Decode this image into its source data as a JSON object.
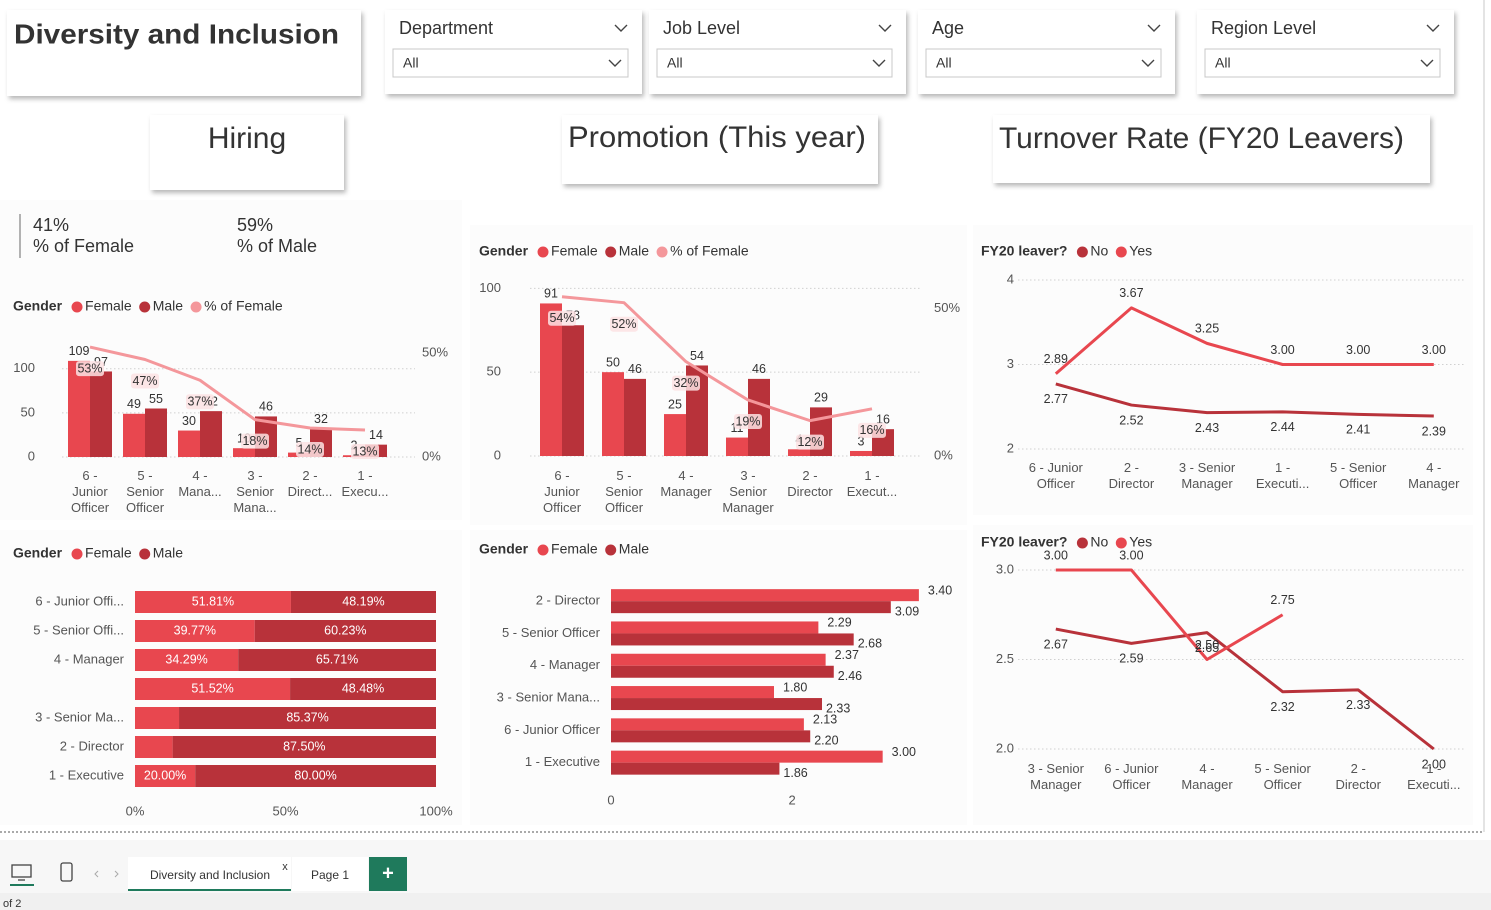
{
  "header": {
    "title": "Diversity and Inclusion"
  },
  "slicers": [
    {
      "label": "Department",
      "value": "All"
    },
    {
      "label": "Job Level",
      "value": "All"
    },
    {
      "label": "Age",
      "value": "All"
    },
    {
      "label": "Region Level",
      "value": "All"
    }
  ],
  "sections": [
    "Hiring",
    "Promotion (This year)",
    "Turnover Rate (FY20 Leavers)"
  ],
  "kpis": [
    {
      "value": "41%",
      "label": "% of Female"
    },
    {
      "value": "59%",
      "label": "% of Male"
    }
  ],
  "chart_data": [
    {
      "type": "combo",
      "legend_title": "Gender",
      "categories": [
        "6 - Junior Officer",
        "5 - Senior Officer",
        "4 - Mana...",
        "3 - Senior Mana...",
        "2 - Direct...",
        "1 - Execu..."
      ],
      "series": [
        {
          "name": "Female",
          "color": "#e8474f",
          "values": [
            109,
            49,
            30,
            10,
            5,
            2
          ]
        },
        {
          "name": "Male",
          "color": "#b8323a",
          "values": [
            97,
            55,
            52,
            46,
            32,
            14
          ]
        },
        {
          "name": "% of Female",
          "color": "#f4979b",
          "axis": "y2",
          "values": [
            53,
            47,
            37,
            18,
            14,
            13
          ],
          "value_labels": [
            "53%",
            "47%",
            "37%",
            "18%",
            "14%",
            "13%"
          ]
        }
      ],
      "ylim": [
        0,
        127
      ],
      "yticks": [
        0,
        50,
        100
      ],
      "y2lim": [
        0,
        54
      ],
      "y2ticks": [
        {
          "value": 0,
          "label": "0%"
        },
        {
          "value": 50,
          "label": "50%"
        }
      ],
      "grid": true
    },
    {
      "type": "combo",
      "legend_title": "Gender",
      "categories": [
        "6 - Junior Officer",
        "5 - Senior Officer",
        "4 - Manager",
        "3 - Senior Manager",
        "2 - Director",
        "1 - Execut..."
      ],
      "series": [
        {
          "name": "Female",
          "color": "#e8474f",
          "values": [
            91,
            50,
            25,
            11,
            4,
            3
          ]
        },
        {
          "name": "Male",
          "color": "#b8323a",
          "values": [
            78,
            46,
            54,
            46,
            29,
            16
          ]
        },
        {
          "name": "% of Female",
          "color": "#f4979b",
          "axis": "y2",
          "values": [
            54,
            52,
            32,
            19,
            12,
            16
          ],
          "value_labels": [
            "54%",
            "52%",
            "32%",
            "19%",
            "12%",
            "16%"
          ]
        }
      ],
      "ylim": [
        0,
        102
      ],
      "yticks": [
        0,
        50,
        100
      ],
      "y2lim": [
        0,
        58
      ],
      "y2ticks": [
        {
          "value": 0,
          "label": "0%"
        },
        {
          "value": 50,
          "label": "50%"
        }
      ],
      "grid": true
    },
    {
      "type": "line",
      "legend_title": "FY20 leaver?",
      "categories": [
        "6 - Junior Officer",
        "2 - Director",
        "3 - Senior Manager",
        "1 - Executi...",
        "5 - Senior Officer",
        "4 - Manager"
      ],
      "series": [
        {
          "name": "No",
          "color": "#b8323a",
          "values": [
            2.77,
            2.52,
            2.43,
            2.44,
            2.41,
            2.39
          ],
          "value_labels": [
            "2.77",
            "2.52",
            "2.43",
            "2.44",
            "2.41",
            "2.39"
          ]
        },
        {
          "name": "Yes",
          "color": "#e8474f",
          "values": [
            2.89,
            3.67,
            3.25,
            3.0,
            3.0,
            3.0
          ],
          "value_labels": [
            "2.89",
            "3.67",
            "3.25",
            "3.00",
            "3.00",
            "3.00"
          ]
        }
      ],
      "ylim": [
        2,
        4
      ],
      "yticks": [
        2,
        3,
        4
      ],
      "grid": true
    },
    {
      "type": "hbar_stacked",
      "legend_title": "Gender",
      "categories": [
        "6 - Junior Offi...",
        "5 - Senior Offi...",
        "4 - Manager",
        null,
        "3 - Senior Ma...",
        "2 - Director",
        "1 - Executive"
      ],
      "series": [
        {
          "name": "Female",
          "color": "#e8474f",
          "values": [
            51.81,
            39.77,
            34.29,
            51.52,
            14.63,
            12.5,
            20.0
          ],
          "value_labels": [
            "51.81%",
            "39.77%",
            "34.29%",
            "51.52%",
            null,
            null,
            "20.00%"
          ]
        },
        {
          "name": "Male",
          "color": "#b8323a",
          "values": [
            48.19,
            60.23,
            65.71,
            48.48,
            85.37,
            87.5,
            80.0
          ],
          "value_labels": [
            "48.19%",
            "60.23%",
            "65.71%",
            "48.48%",
            "85.37%",
            "87.50%",
            "80.00%"
          ]
        }
      ],
      "xlim": [
        0,
        100
      ],
      "xticks": [
        {
          "value": 0,
          "label": "0%"
        },
        {
          "value": 50,
          "label": "50%"
        },
        {
          "value": 100,
          "label": "100%"
        }
      ]
    },
    {
      "type": "hbar",
      "legend_title": "Gender",
      "categories": [
        "2 - Director",
        "5 - Senior Officer",
        "4 - Manager",
        "3 - Senior Mana...",
        "6 - Junior Officer",
        "1 - Executive"
      ],
      "series": [
        {
          "name": "Female",
          "color": "#e8474f",
          "values": [
            3.4,
            2.29,
            2.37,
            1.8,
            2.13,
            3.0
          ],
          "value_labels": [
            "3.40",
            "2.29",
            "2.37",
            "1.80",
            "2.13",
            "3.00"
          ]
        },
        {
          "name": "Male",
          "color": "#b8323a",
          "values": [
            3.09,
            2.68,
            2.46,
            2.33,
            2.2,
            1.86
          ],
          "value_labels": [
            "3.09",
            "2.68",
            "2.46",
            "2.33",
            "2.20",
            "1.86"
          ]
        }
      ],
      "xlim": [
        0,
        3.6
      ],
      "xticks": [
        0,
        2
      ]
    },
    {
      "type": "line",
      "legend_title": "FY20 leaver?",
      "categories": [
        "3 - Senior Manager",
        "6 - Junior Officer",
        "4 - Manager",
        "5 - Senior Officer",
        "2 - Director",
        "1 - Executi..."
      ],
      "series": [
        {
          "name": "No",
          "color": "#b8323a",
          "values": [
            2.67,
            2.59,
            2.65,
            2.32,
            2.33,
            2.0
          ],
          "value_labels": [
            "2.67",
            "2.59",
            "2.65",
            "2.32",
            "2.33",
            "2.00"
          ]
        },
        {
          "name": "Yes",
          "color": "#e8474f",
          "values": [
            3.0,
            3.0,
            2.5,
            2.75,
            null,
            null
          ],
          "value_labels": [
            "3.00",
            "3.00",
            "2.50",
            "2.75",
            null,
            null
          ]
        }
      ],
      "ylim": [
        2,
        3
      ],
      "yticks": [
        {
          "value": 2,
          "label": "2.0"
        },
        2.5,
        {
          "value": 3,
          "label": "3.0"
        }
      ],
      "grid": true
    }
  ],
  "tabs": {
    "pages": [
      "Diversity and Inclusion",
      "Page 1"
    ],
    "close": "x",
    "add": "+"
  },
  "footer": "of 2"
}
